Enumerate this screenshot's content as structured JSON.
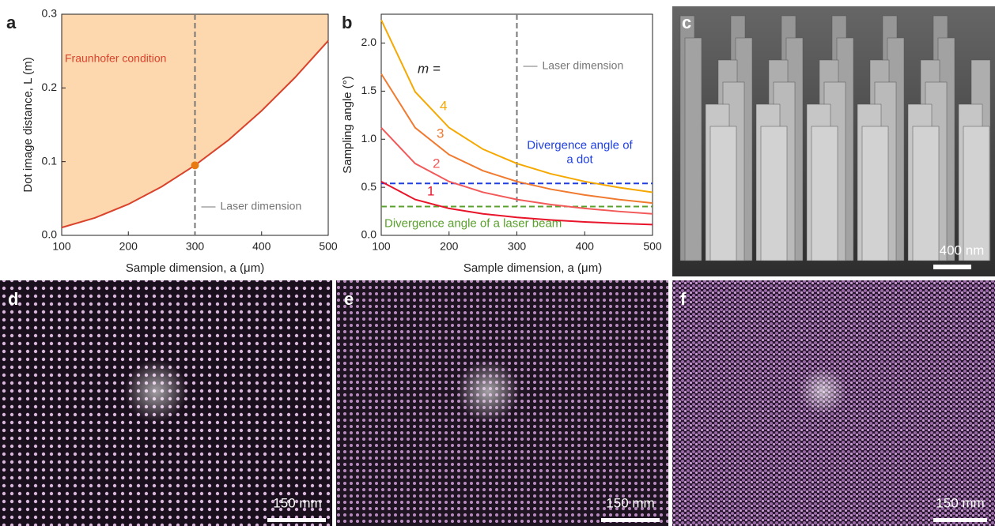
{
  "chart_data": [
    {
      "type": "area-line",
      "panel_label": "a",
      "x_label": "Sample dimension, a (μm)",
      "y_label": "Dot image distance, L (m)",
      "x": [
        100,
        150,
        200,
        250,
        300,
        350,
        400,
        450,
        500
      ],
      "values": [
        0.0106,
        0.0238,
        0.0422,
        0.066,
        0.095,
        0.129,
        0.169,
        0.214,
        0.264
      ],
      "color": "#d9432b",
      "fill_color": "#fdd7ae",
      "xlim": [
        100,
        500
      ],
      "ylim": [
        0,
        0.3
      ],
      "xticks": [
        100,
        200,
        300,
        400,
        500
      ],
      "yticks": [
        {
          "value": 0,
          "label": "0.0"
        },
        0.1,
        0.2,
        0.3
      ],
      "fill_label": "Fraunhofer condition",
      "marker": {
        "x": 300,
        "y": 0.095,
        "color": "#e87a12"
      },
      "vline": {
        "x": 300,
        "label": "Laser dimension"
      }
    },
    {
      "type": "line",
      "panel_label": "b",
      "x_label": "Sample dimension, a (μm)",
      "y_label": "Sampling angle (°)",
      "x": [
        100,
        150,
        200,
        250,
        300,
        350,
        400,
        450,
        500
      ],
      "legend_title": "m =",
      "series": [
        {
          "name": "1",
          "color": "#e8142a",
          "values": [
            0.56,
            0.373,
            0.28,
            0.224,
            0.187,
            0.16,
            0.14,
            0.124,
            0.112
          ]
        },
        {
          "name": "2",
          "color": "#f25a5a",
          "values": [
            1.12,
            0.747,
            0.56,
            0.448,
            0.373,
            0.32,
            0.28,
            0.249,
            0.224
          ]
        },
        {
          "name": "3",
          "color": "#f07a30",
          "values": [
            1.68,
            1.12,
            0.84,
            0.672,
            0.56,
            0.48,
            0.42,
            0.373,
            0.336
          ]
        },
        {
          "name": "4",
          "color": "#f5a800",
          "values": [
            2.24,
            1.493,
            1.12,
            0.896,
            0.747,
            0.64,
            0.56,
            0.498,
            0.448
          ]
        }
      ],
      "xlim": [
        100,
        500
      ],
      "ylim": [
        0,
        2.3
      ],
      "xticks": [
        100,
        200,
        300,
        400,
        500
      ],
      "yticks": [
        {
          "value": 0,
          "label": "0.0"
        },
        0.5,
        {
          "value": 1,
          "label": "1.0"
        },
        1.5,
        {
          "value": 2,
          "label": "2.0"
        }
      ],
      "hlines": [
        {
          "y": 0.54,
          "color": "#1f3fe0",
          "label": "Divergence angle of a dot"
        },
        {
          "y": 0.3,
          "color": "#5aa02c",
          "label": "Divergence angle of a laser beam"
        }
      ],
      "vline": {
        "x": 300,
        "label": "Laser dimension"
      }
    }
  ],
  "images": [
    {
      "label": "c",
      "scale_bar": "400 nm"
    },
    {
      "label": "d",
      "scale_bar": "150 mm"
    },
    {
      "label": "e",
      "scale_bar": "150 mm"
    },
    {
      "label": "f",
      "scale_bar": "150 mm"
    }
  ]
}
